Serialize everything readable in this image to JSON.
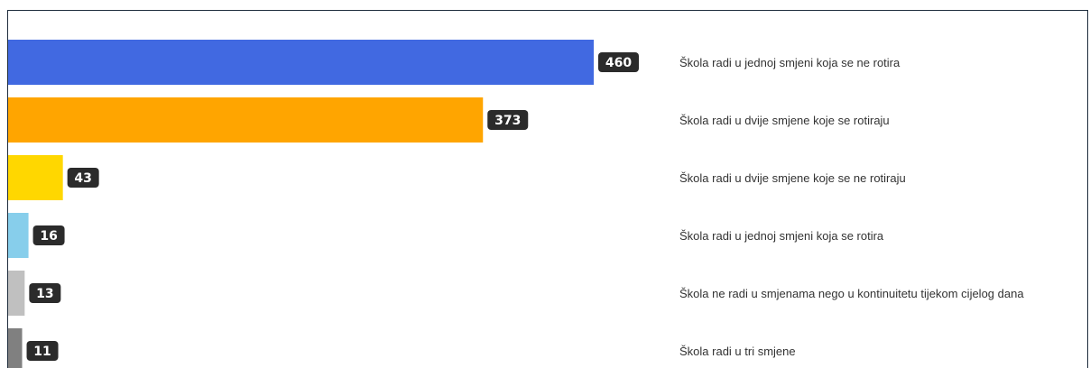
{
  "chart_data": {
    "type": "bar",
    "orientation": "horizontal",
    "categories": [
      "Škola radi u jednoj smjeni koja se ne rotira",
      "Škola radi u dvije smjene koje se rotiraju",
      "Škola radi u dvije smjene koje se ne rotiraju",
      "Škola radi u jednoj smjeni koja se rotira",
      "Škola ne radi u smjenama nego u kontinuitetu tijekom cijelog dana",
      "Škola radi u tri smjene"
    ],
    "values": [
      460,
      373,
      43,
      16,
      13,
      11
    ],
    "colors": [
      "#4169e1",
      "#ffa500",
      "#ffd700",
      "#87ceeb",
      "#c0c0c0",
      "#808080"
    ],
    "value_label_color": "#2b2b2b",
    "title": "",
    "xlabel": "",
    "ylabel": "",
    "legend": "none",
    "grid": false
  }
}
